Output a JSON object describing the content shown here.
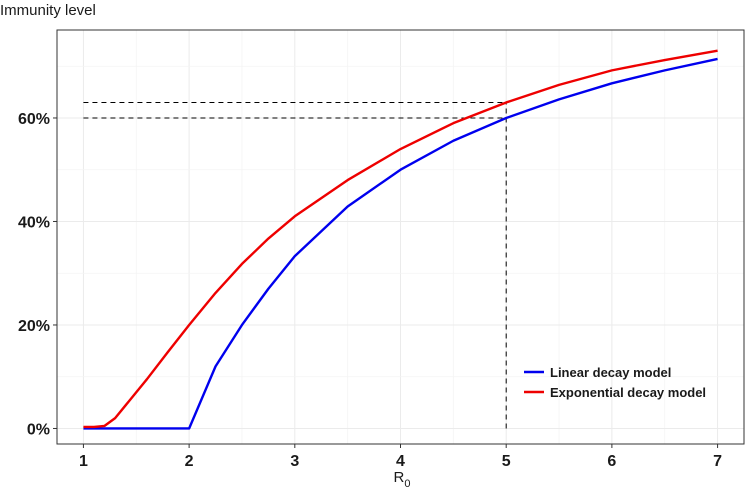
{
  "chart_data": {
    "type": "line",
    "title": "Immunity level",
    "xlabel_main": "R",
    "xlabel_sub": "0",
    "xlim": [
      0.75,
      7.25
    ],
    "ylim": [
      -0.03,
      0.77
    ],
    "x_ticks": [
      1,
      2,
      3,
      4,
      5,
      6,
      7
    ],
    "x_tick_labels": [
      "1",
      "2",
      "3",
      "4",
      "5",
      "6",
      "7"
    ],
    "y_ticks": [
      0,
      0.2,
      0.4,
      0.6
    ],
    "y_tick_labels": [
      "0%",
      "20%",
      "40%",
      "60%"
    ],
    "grid": true,
    "legend_position": "bottom-right",
    "series": [
      {
        "name": "Linear decay model",
        "color": "#0000ee",
        "x": [
          1,
          1.5,
          2,
          2.25,
          2.5,
          2.75,
          3,
          3.5,
          4,
          4.5,
          5,
          5.5,
          6,
          6.5,
          7
        ],
        "y": [
          0,
          0,
          0,
          0.12,
          0.2,
          0.27,
          0.333,
          0.429,
          0.5,
          0.556,
          0.6,
          0.636,
          0.667,
          0.692,
          0.714
        ]
      },
      {
        "name": "Exponential decay model",
        "color": "#ee0000",
        "x": [
          1,
          1.1,
          1.2,
          1.3,
          1.4,
          1.5,
          1.6,
          1.8,
          2,
          2.25,
          2.5,
          2.75,
          3,
          3.5,
          4,
          4.5,
          5,
          5.5,
          6,
          6.5,
          7
        ],
        "y": [
          0.003,
          0.003,
          0.005,
          0.02,
          0.045,
          0.07,
          0.095,
          0.148,
          0.2,
          0.262,
          0.318,
          0.367,
          0.41,
          0.48,
          0.54,
          0.59,
          0.63,
          0.664,
          0.692,
          0.712,
          0.73
        ]
      }
    ],
    "reference_lines": [
      {
        "type": "horizontal",
        "y": 0.6,
        "x_from": 1,
        "x_to": 5
      },
      {
        "type": "horizontal",
        "y": 0.63,
        "x_from": 1,
        "x_to": 5
      },
      {
        "type": "vertical",
        "x": 5,
        "y_from": 0,
        "y_to": 0.63
      }
    ]
  }
}
